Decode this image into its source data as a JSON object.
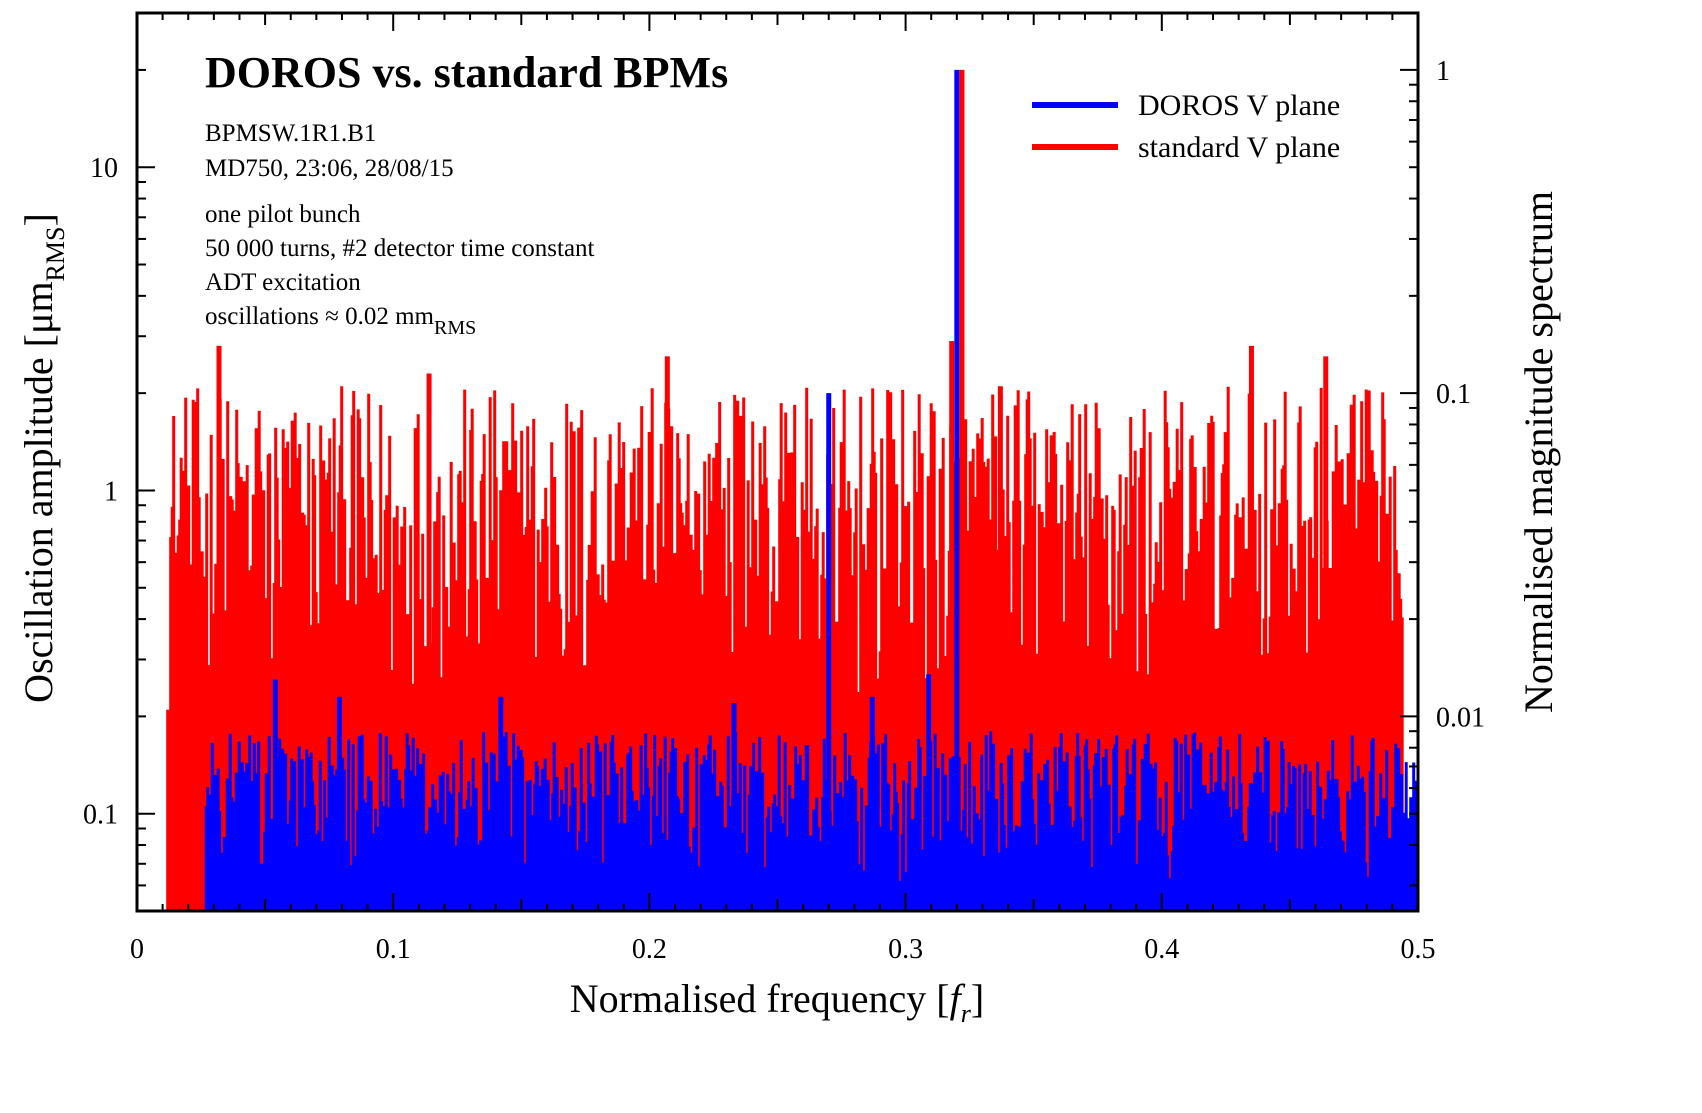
{
  "chart_data": {
    "type": "line",
    "title": "DOROS vs. standard BPMs",
    "annotations": [
      "BPMSW.1R1.B1",
      "MD750, 23:06, 28/08/15",
      "one pilot bunch",
      "50 000 turns,  #2 detector time constant",
      "ADT  excitation"
    ],
    "oscillation_note": {
      "prefix": "oscillations  ≈ 0.02  mm",
      "subscript": "RMS"
    },
    "xlabel": {
      "main": "Normalised frequency   [",
      "var": "f",
      "sub": "r",
      "close": "]"
    },
    "ylabel": {
      "main": "Oscillation amplitude   [μm",
      "sub": "RMS",
      "close": "]"
    },
    "y2label": "Normalised magnitude spectrum",
    "xlim": [
      0,
      0.5
    ],
    "ylim": [
      0.05,
      30
    ],
    "y_scale": "log",
    "y2lim": [
      0.0025,
      1.5
    ],
    "y2_scale": "log",
    "x_ticks": [
      {
        "v": 0,
        "label": "0"
      },
      {
        "v": 0.1,
        "label": "0.1"
      },
      {
        "v": 0.2,
        "label": "0.2"
      },
      {
        "v": 0.3,
        "label": "0.3"
      },
      {
        "v": 0.4,
        "label": "0.4"
      },
      {
        "v": 0.5,
        "label": "0.5"
      }
    ],
    "y_ticks": [
      {
        "v": 0.1,
        "label": "0.1"
      },
      {
        "v": 1,
        "label": "1"
      },
      {
        "v": 10,
        "label": "10"
      }
    ],
    "y2_ticks": [
      {
        "v": 0.01,
        "label": "0.01"
      },
      {
        "v": 0.1,
        "label": "0.1"
      },
      {
        "v": 1,
        "label": "1"
      }
    ],
    "legend_position": "top-right",
    "series": [
      {
        "name": "standard V plane",
        "color": "#ff0000",
        "x_range": [
          0.012,
          0.494
        ],
        "floor": 0.05,
        "band_min": 0.2,
        "band_max": 2.1,
        "spikes": [
          {
            "x": 0.032,
            "y": 2.8
          },
          {
            "x": 0.114,
            "y": 2.3
          },
          {
            "x": 0.207,
            "y": 2.6
          },
          {
            "x": 0.337,
            "y": 2.1
          },
          {
            "x": 0.435,
            "y": 2.8
          },
          {
            "x": 0.464,
            "y": 2.6
          },
          {
            "x": 0.322,
            "y": 20.0
          },
          {
            "x": 0.318,
            "y": 2.9
          }
        ]
      },
      {
        "name": "DOROS V plane",
        "color": "#0000ff",
        "x_range": [
          0.027,
          0.5
        ],
        "floor": 0.05,
        "band_min": 0.06,
        "band_max": 0.18,
        "spikes": [
          {
            "x": 0.054,
            "y": 0.26
          },
          {
            "x": 0.079,
            "y": 0.23
          },
          {
            "x": 0.142,
            "y": 0.23
          },
          {
            "x": 0.233,
            "y": 0.22
          },
          {
            "x": 0.287,
            "y": 0.23
          },
          {
            "x": 0.309,
            "y": 0.27
          },
          {
            "x": 0.27,
            "y": 2.0
          },
          {
            "x": 0.32,
            "y": 20.0
          }
        ]
      }
    ]
  }
}
